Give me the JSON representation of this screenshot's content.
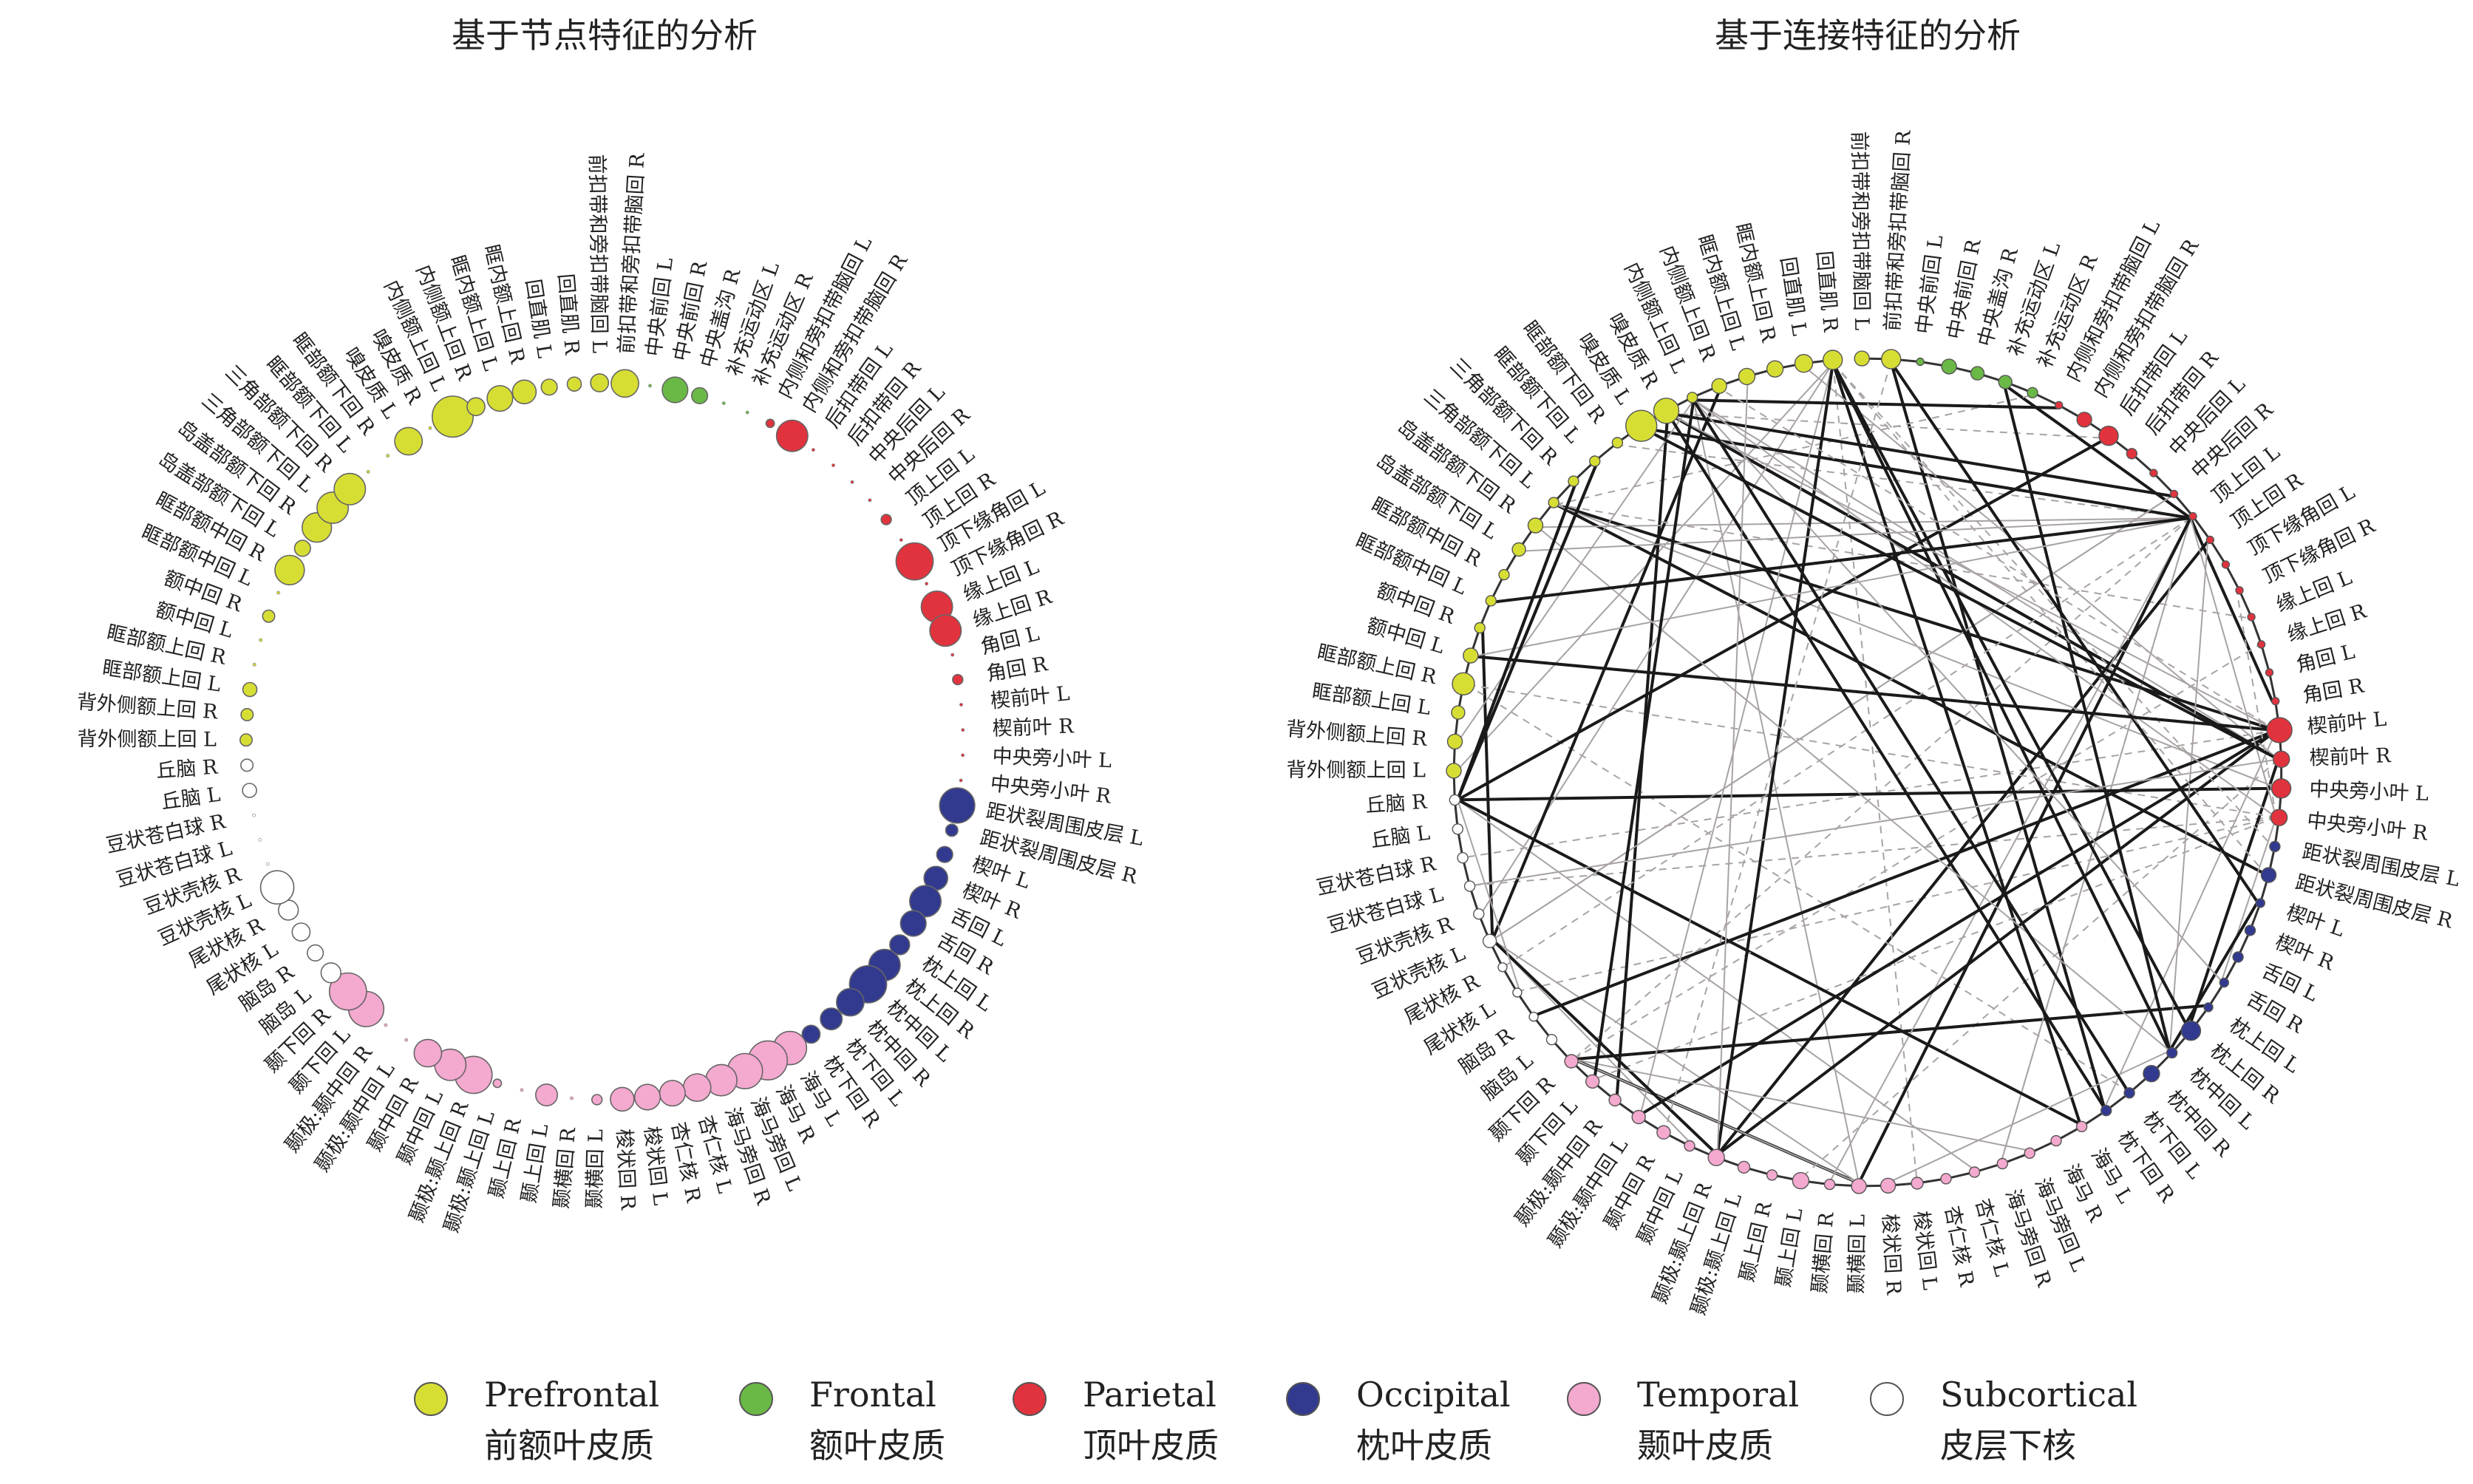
{
  "titles": {
    "left": "基于节点特征的分析",
    "right": "基于连接特征的分析"
  },
  "colors": {
    "Prefrontal": "#d7de33",
    "Frontal": "#6ab946",
    "Parietal": "#e1333d",
    "Occipital": "#323a8f",
    "Temporal": "#f4a9cf",
    "Subcortical": "#ffffff"
  },
  "legend": [
    {
      "key": "Prefrontal",
      "en": "Prefrontal",
      "zh": "前额叶皮质"
    },
    {
      "key": "Frontal",
      "en": "Frontal",
      "zh": "额叶皮质"
    },
    {
      "key": "Parietal",
      "en": "Parietal",
      "zh": "顶叶皮质"
    },
    {
      "key": "Occipital",
      "en": "Occipital",
      "zh": "枕叶皮质"
    },
    {
      "key": "Temporal",
      "en": "Temporal",
      "zh": "颞叶皮质"
    },
    {
      "key": "Subcortical",
      "en": "Subcortical",
      "zh": "皮层下核"
    }
  ],
  "regions": [
    {
      "label": "前扣带和旁扣带脑回 L",
      "lobe": "Prefrontal",
      "left_size": 0.35,
      "right_size": 0.35
    },
    {
      "label": "前扣带和旁扣带脑回 R",
      "lobe": "Prefrontal",
      "left_size": 0.6,
      "right_size": 0.5
    },
    {
      "label": "中央前回 L",
      "lobe": "Frontal",
      "left_size": 0.0,
      "right_size": 0.1
    },
    {
      "label": "中央前回 R",
      "lobe": "Frontal",
      "left_size": 0.55,
      "right_size": 0.35
    },
    {
      "label": "中央盖沟 R",
      "lobe": "Frontal",
      "left_size": 0.3,
      "right_size": 0.3
    },
    {
      "label": "补充运动区 L",
      "lobe": "Frontal",
      "left_size": 0.0,
      "right_size": 0.3
    },
    {
      "label": "补充运动区 R",
      "lobe": "Frontal",
      "left_size": 0.0,
      "right_size": 0.2
    },
    {
      "label": "内侧和旁扣带脑回 L",
      "lobe": "Parietal",
      "left_size": 0.1,
      "right_size": 0.1
    },
    {
      "label": "内侧和旁扣带脑回 R",
      "lobe": "Parietal",
      "left_size": 0.7,
      "right_size": 0.35
    },
    {
      "label": "后扣带回 L",
      "lobe": "Parietal",
      "left_size": 0.0,
      "right_size": 0.5
    },
    {
      "label": "后扣带回 R",
      "lobe": "Parietal",
      "left_size": 0.0,
      "right_size": 0.2
    },
    {
      "label": "中央后回 L",
      "lobe": "Parietal",
      "left_size": 0.0,
      "right_size": 0.1
    },
    {
      "label": "中央后回 R",
      "lobe": "Parietal",
      "left_size": 0.0,
      "right_size": 0.1
    },
    {
      "label": "顶上回 L",
      "lobe": "Parietal",
      "left_size": 0.15,
      "right_size": 0.1
    },
    {
      "label": "顶上回 R",
      "lobe": "Parietal",
      "left_size": 0.0,
      "right_size": 0.1
    },
    {
      "label": "顶下缘角回 L",
      "lobe": "Parietal",
      "left_size": 0.85,
      "right_size": 0.1
    },
    {
      "label": "顶下缘角回 R",
      "lobe": "Parietal",
      "left_size": 0.0,
      "right_size": 0.1
    },
    {
      "label": "缘上回 L",
      "lobe": "Parietal",
      "left_size": 0.7,
      "right_size": 0.1
    },
    {
      "label": "缘上回 R",
      "lobe": "Parietal",
      "left_size": 0.7,
      "right_size": 0.1
    },
    {
      "label": "角回 L",
      "lobe": "Parietal",
      "left_size": 0.0,
      "right_size": 0.1
    },
    {
      "label": "角回 R",
      "lobe": "Parietal",
      "left_size": 0.15,
      "right_size": 0.1
    },
    {
      "label": "楔前叶 L",
      "lobe": "Parietal",
      "left_size": 0.0,
      "right_size": 0.7
    },
    {
      "label": "楔前叶 R",
      "lobe": "Parietal",
      "left_size": 0.0,
      "right_size": 0.4
    },
    {
      "label": "中央旁小叶 L",
      "lobe": "Parietal",
      "left_size": 0.0,
      "right_size": 0.5
    },
    {
      "label": "中央旁小叶 R",
      "lobe": "Parietal",
      "left_size": 0.0,
      "right_size": 0.4
    },
    {
      "label": "距状裂周围皮层 L",
      "lobe": "Occipital",
      "left_size": 0.8,
      "right_size": 0.2
    },
    {
      "label": "距状裂周围皮层 R",
      "lobe": "Occipital",
      "left_size": 0.2,
      "right_size": 0.35
    },
    {
      "label": "楔叶 L",
      "lobe": "Occipital",
      "left_size": 0.3,
      "right_size": 0.15
    },
    {
      "label": "楔叶 R",
      "lobe": "Occipital",
      "left_size": 0.5,
      "right_size": 0.2
    },
    {
      "label": "舌回 L",
      "lobe": "Occipital",
      "left_size": 0.7,
      "right_size": 0.2
    },
    {
      "label": "舌回 R",
      "lobe": "Occipital",
      "left_size": 0.55,
      "right_size": 0.15
    },
    {
      "label": "枕上回 L",
      "lobe": "Occipital",
      "left_size": 0.4,
      "right_size": 0.15
    },
    {
      "label": "枕上回 R",
      "lobe": "Occipital",
      "left_size": 0.7,
      "right_size": 0.5
    },
    {
      "label": "枕中回 L",
      "lobe": "Occipital",
      "left_size": 0.85,
      "right_size": 0.2
    },
    {
      "label": "枕中回 R",
      "lobe": "Occipital",
      "left_size": 0.6,
      "right_size": 0.4
    },
    {
      "label": "枕下回 L",
      "lobe": "Occipital",
      "left_size": 0.45,
      "right_size": 0.2
    },
    {
      "label": "枕下回 R",
      "lobe": "Occipital",
      "left_size": 0.35,
      "right_size": 0.2
    },
    {
      "label": "海马 L",
      "lobe": "Temporal",
      "left_size": 0.75,
      "right_size": 0.2
    },
    {
      "label": "海马 R",
      "lobe": "Temporal",
      "left_size": 0.9,
      "right_size": 0.2
    },
    {
      "label": "海马旁回 L",
      "lobe": "Temporal",
      "left_size": 0.8,
      "right_size": 0.2
    },
    {
      "label": "海马旁回 R",
      "lobe": "Temporal",
      "left_size": 0.7,
      "right_size": 0.2
    },
    {
      "label": "杏仁核 L",
      "lobe": "Temporal",
      "left_size": 0.6,
      "right_size": 0.2
    },
    {
      "label": "杏仁核 R",
      "lobe": "Temporal",
      "left_size": 0.55,
      "right_size": 0.2
    },
    {
      "label": "梭状回 L",
      "lobe": "Temporal",
      "left_size": 0.55,
      "right_size": 0.25
    },
    {
      "label": "梭状回 R",
      "lobe": "Temporal",
      "left_size": 0.5,
      "right_size": 0.35
    },
    {
      "label": "颞横回 L",
      "lobe": "Temporal",
      "left_size": 0.15,
      "right_size": 0.35
    },
    {
      "label": "颞横回 R",
      "lobe": "Temporal",
      "left_size": 0.0,
      "right_size": 0.2
    },
    {
      "label": "颞上回 L",
      "lobe": "Temporal",
      "left_size": 0.45,
      "right_size": 0.4
    },
    {
      "label": "颞上回 R",
      "lobe": "Temporal",
      "left_size": 0.0,
      "right_size": 0.2
    },
    {
      "label": "颞极:颞上回 L",
      "lobe": "Temporal",
      "left_size": 0.1,
      "right_size": 0.25
    },
    {
      "label": "颞极:颞上回 R",
      "lobe": "Temporal",
      "left_size": 0.85,
      "right_size": 0.4
    },
    {
      "label": "颞中回 L",
      "lobe": "Temporal",
      "left_size": 0.7,
      "right_size": 0.2
    },
    {
      "label": "颞中回 R",
      "lobe": "Temporal",
      "left_size": 0.6,
      "right_size": 0.3
    },
    {
      "label": "颞极:颞中回 L",
      "lobe": "Temporal",
      "left_size": 0.0,
      "right_size": 0.3
    },
    {
      "label": "颞极:颞中回 R",
      "lobe": "Temporal",
      "left_size": 0.0,
      "right_size": 0.25
    },
    {
      "label": "颞下回 L",
      "lobe": "Temporal",
      "left_size": 0.8,
      "right_size": 0.3
    },
    {
      "label": "颞下回 R",
      "lobe": "Temporal",
      "left_size": 0.85,
      "right_size": 0.3
    },
    {
      "label": "脑岛 L",
      "lobe": "Subcortical",
      "left_size": 0.4,
      "right_size": 0.2
    },
    {
      "label": "脑岛 R",
      "lobe": "Subcortical",
      "left_size": 0.3,
      "right_size": 0.15
    },
    {
      "label": "尾状核 L",
      "lobe": "Subcortical",
      "left_size": 0.35,
      "right_size": 0.15
    },
    {
      "label": "尾状核 R",
      "lobe": "Subcortical",
      "left_size": 0.4,
      "right_size": 0.15
    },
    {
      "label": "豆状壳核 L",
      "lobe": "Subcortical",
      "left_size": 0.75,
      "right_size": 0.3
    },
    {
      "label": "豆状壳核 R",
      "lobe": "Subcortical",
      "left_size": 0.0,
      "right_size": 0.2
    },
    {
      "label": "豆状苍白球 L",
      "lobe": "Subcortical",
      "left_size": 0.0,
      "right_size": 0.2
    },
    {
      "label": "豆状苍白球 R",
      "lobe": "Subcortical",
      "left_size": 0.0,
      "right_size": 0.2
    },
    {
      "label": "丘脑 L",
      "lobe": "Subcortical",
      "left_size": 0.25,
      "right_size": 0.2
    },
    {
      "label": "丘脑 R",
      "lobe": "Subcortical",
      "left_size": 0.2,
      "right_size": 0.2
    },
    {
      "label": "背外侧额上回 L",
      "lobe": "Prefrontal",
      "left_size": 0.2,
      "right_size": 0.35
    },
    {
      "label": "背外侧额上回 R",
      "lobe": "Prefrontal",
      "left_size": 0.2,
      "right_size": 0.35
    },
    {
      "label": "眶部额上回 L",
      "lobe": "Prefrontal",
      "left_size": 0.25,
      "right_size": 0.3
    },
    {
      "label": "眶部额上回 R",
      "lobe": "Prefrontal",
      "left_size": 0.0,
      "right_size": 0.6
    },
    {
      "label": "额中回 L",
      "lobe": "Prefrontal",
      "left_size": 0.0,
      "right_size": 0.35
    },
    {
      "label": "额中回 R",
      "lobe": "Prefrontal",
      "left_size": 0.2,
      "right_size": 0.2
    },
    {
      "label": "眶部额中回 L",
      "lobe": "Prefrontal",
      "left_size": 0.0,
      "right_size": 0.2
    },
    {
      "label": "眶部额中回 R",
      "lobe": "Prefrontal",
      "left_size": 0.65,
      "right_size": 0.2
    },
    {
      "label": "岛盖部额下回 L",
      "lobe": "Prefrontal",
      "left_size": 0.3,
      "right_size": 0.3
    },
    {
      "label": "岛盖部额下回 R",
      "lobe": "Prefrontal",
      "left_size": 0.65,
      "right_size": 0.35
    },
    {
      "label": "三角部额下回 L",
      "lobe": "Prefrontal",
      "left_size": 0.7,
      "right_size": 0.2
    },
    {
      "label": "三角部额下回 R",
      "lobe": "Prefrontal",
      "left_size": 0.7,
      "right_size": 0.2
    },
    {
      "label": "眶部额下回 L",
      "lobe": "Prefrontal",
      "left_size": 0.0,
      "right_size": 0.2
    },
    {
      "label": "眶部额下回 R",
      "lobe": "Prefrontal",
      "left_size": 0.0,
      "right_size": 0.2
    },
    {
      "label": "嗅皮质 L",
      "lobe": "Prefrontal",
      "left_size": 0.6,
      "right_size": 0.9
    },
    {
      "label": "嗅皮质 R",
      "lobe": "Prefrontal",
      "left_size": 0.0,
      "right_size": 0.7
    },
    {
      "label": "内侧额上回 L",
      "lobe": "Prefrontal",
      "left_size": 0.95,
      "right_size": 0.2
    },
    {
      "label": "内侧额上回 R",
      "lobe": "Prefrontal",
      "left_size": 0.35,
      "right_size": 0.35
    },
    {
      "label": "眶内额上回 L",
      "lobe": "Prefrontal",
      "left_size": 0.55,
      "right_size": 0.4
    },
    {
      "label": "眶内额上回 R",
      "lobe": "Prefrontal",
      "left_size": 0.5,
      "right_size": 0.4
    },
    {
      "label": "回直肌 L",
      "lobe": "Prefrontal",
      "left_size": 0.3,
      "right_size": 0.45
    },
    {
      "label": "回直肌 R",
      "lobe": "Prefrontal",
      "left_size": 0.25,
      "right_size": 0.5
    }
  ]
}
